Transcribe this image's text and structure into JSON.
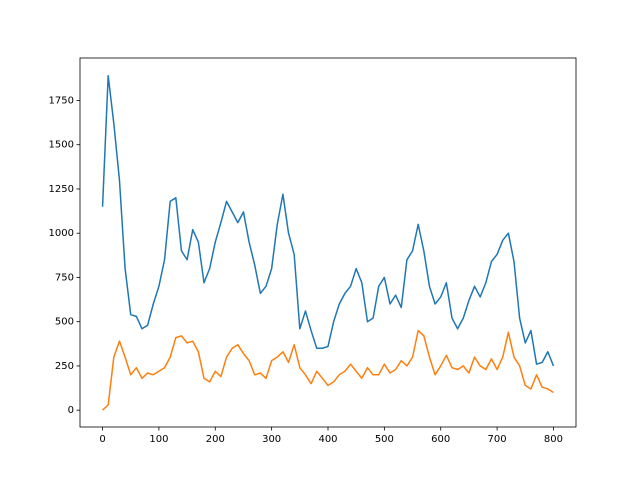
{
  "chart_data": {
    "type": "line",
    "x": [
      0,
      10,
      20,
      30,
      40,
      50,
      60,
      70,
      80,
      90,
      100,
      110,
      120,
      130,
      140,
      150,
      160,
      170,
      180,
      190,
      200,
      210,
      220,
      230,
      240,
      250,
      260,
      270,
      280,
      290,
      300,
      310,
      320,
      330,
      340,
      350,
      360,
      370,
      380,
      390,
      400,
      410,
      420,
      430,
      440,
      450,
      460,
      470,
      480,
      490,
      500,
      510,
      520,
      530,
      540,
      550,
      560,
      570,
      580,
      590,
      600,
      610,
      620,
      630,
      640,
      650,
      660,
      670,
      680,
      690,
      700,
      710,
      720,
      730,
      740,
      750,
      760,
      770,
      780,
      790,
      800
    ],
    "series": [
      {
        "color": "#1f77b4",
        "values": [
          1150,
          1890,
          1620,
          1300,
          800,
          540,
          530,
          460,
          480,
          600,
          700,
          850,
          1180,
          1200,
          900,
          850,
          1020,
          950,
          720,
          800,
          950,
          1060,
          1180,
          1120,
          1060,
          1120,
          950,
          820,
          660,
          700,
          800,
          1050,
          1220,
          1000,
          880,
          460,
          560,
          450,
          350,
          350,
          360,
          500,
          600,
          660,
          700,
          800,
          720,
          500,
          520,
          700,
          750,
          600,
          650,
          580,
          850,
          900,
          1050,
          900,
          700,
          600,
          640,
          720,
          520,
          460,
          520,
          620,
          700,
          640,
          720,
          840,
          880,
          960,
          1000,
          840,
          520,
          380,
          450,
          260,
          270,
          330,
          250
        ]
      },
      {
        "color": "#ff7f0e",
        "values": [
          0,
          30,
          300,
          390,
          300,
          200,
          240,
          180,
          210,
          200,
          220,
          240,
          300,
          410,
          420,
          380,
          390,
          330,
          180,
          160,
          220,
          190,
          300,
          350,
          370,
          320,
          280,
          200,
          210,
          180,
          280,
          300,
          330,
          270,
          370,
          240,
          200,
          150,
          220,
          180,
          140,
          160,
          200,
          220,
          260,
          220,
          180,
          240,
          200,
          200,
          260,
          210,
          230,
          280,
          250,
          300,
          450,
          420,
          300,
          200,
          250,
          310,
          240,
          230,
          250,
          210,
          300,
          250,
          230,
          290,
          230,
          300,
          440,
          300,
          250,
          140,
          120,
          200,
          130,
          120,
          100
        ]
      }
    ],
    "xlim": [
      -40,
      840
    ],
    "ylim": [
      -95,
      1990
    ],
    "xticks": [
      0,
      100,
      200,
      300,
      400,
      500,
      600,
      700,
      800
    ],
    "yticks": [
      0,
      250,
      500,
      750,
      1000,
      1250,
      1500,
      1750
    ]
  }
}
